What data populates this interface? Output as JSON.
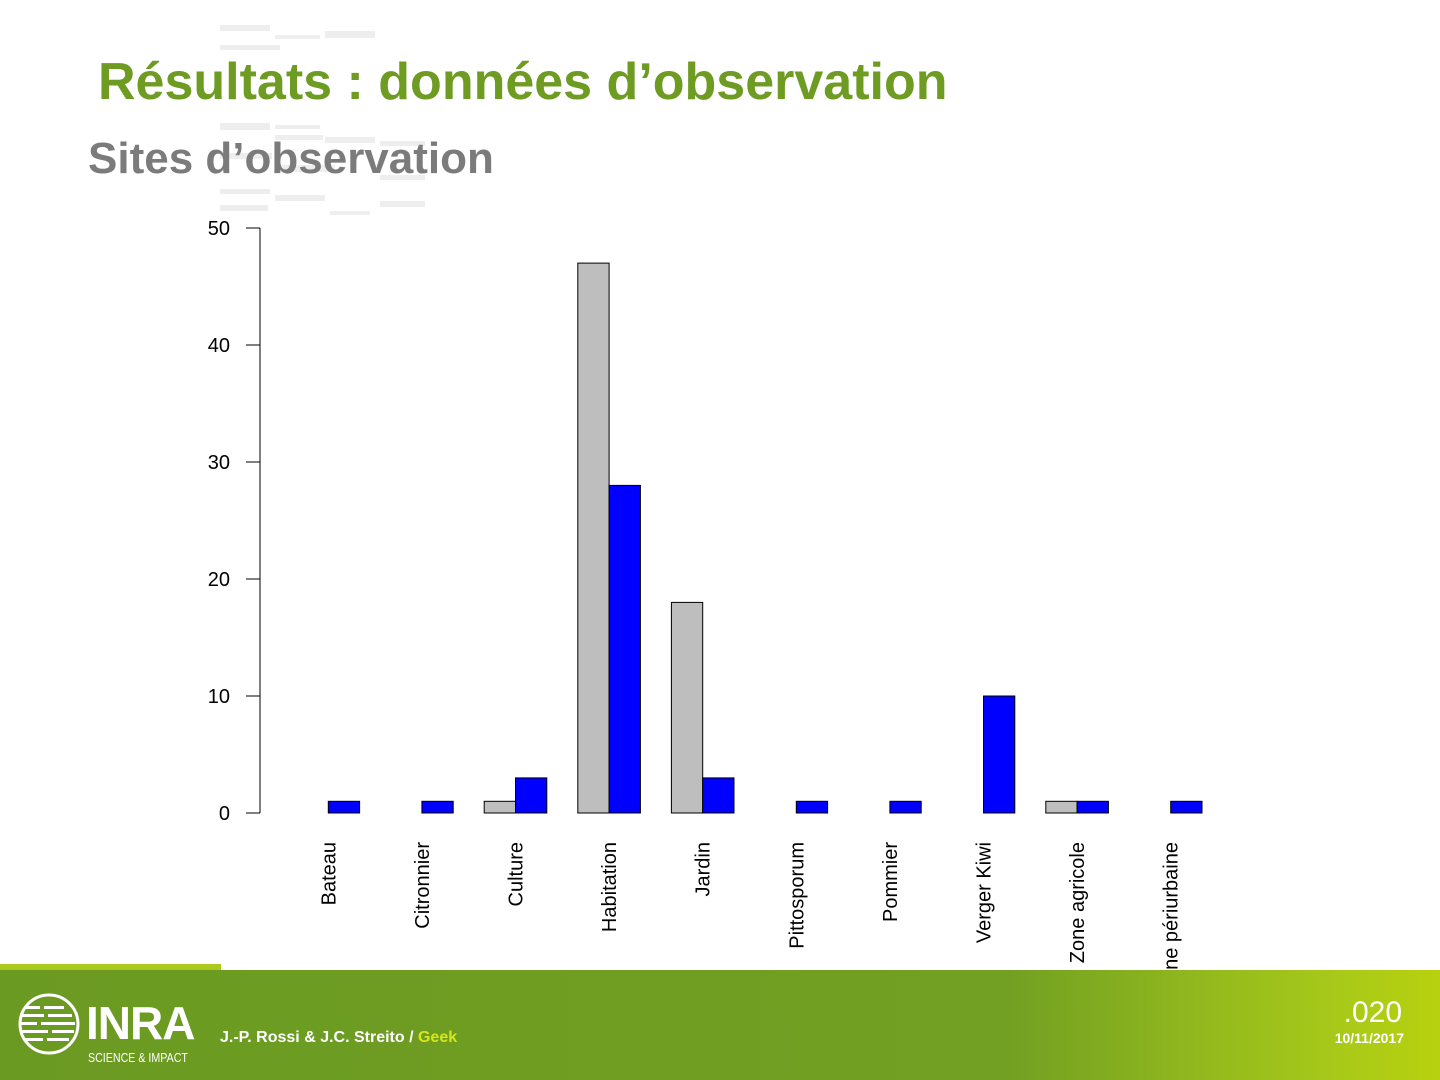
{
  "slide": {
    "title": "Résultats : données d’observation",
    "subtitle": "Sites d’observation"
  },
  "footer": {
    "logo_text": "INRA",
    "logo_sub": "SCIENCE & IMPACT",
    "authors": "J.-P. Rossi & J.C. Streito / ",
    "authors_highlight": "Geek",
    "slide_number": ".020",
    "date": "10/11/2017"
  },
  "colors": {
    "title": "#6e9b22",
    "subtitle": "#7b7b7b",
    "footer": "#72a022",
    "series_gray": "#bebebe",
    "series_blue": "#0000ff"
  },
  "chart_data": {
    "type": "bar",
    "categories": [
      "Bateau",
      "Citronnier",
      "Culture",
      "Habitation",
      "Jardin",
      "Pittosporum",
      "Pommier",
      "Verger Kiwi",
      "Zone agricole",
      "Zone périurbaine"
    ],
    "series": [
      {
        "color": "#bebebe",
        "values": [
          0,
          0,
          1,
          47,
          18,
          0,
          0,
          0,
          1,
          0
        ]
      },
      {
        "color": "#0000ff",
        "values": [
          1,
          1,
          3,
          28,
          3,
          1,
          1,
          10,
          1,
          1
        ]
      }
    ],
    "yticks": [
      0,
      10,
      20,
      30,
      40,
      50
    ],
    "ylim": [
      0,
      50
    ],
    "grid": false,
    "legend": "none"
  }
}
